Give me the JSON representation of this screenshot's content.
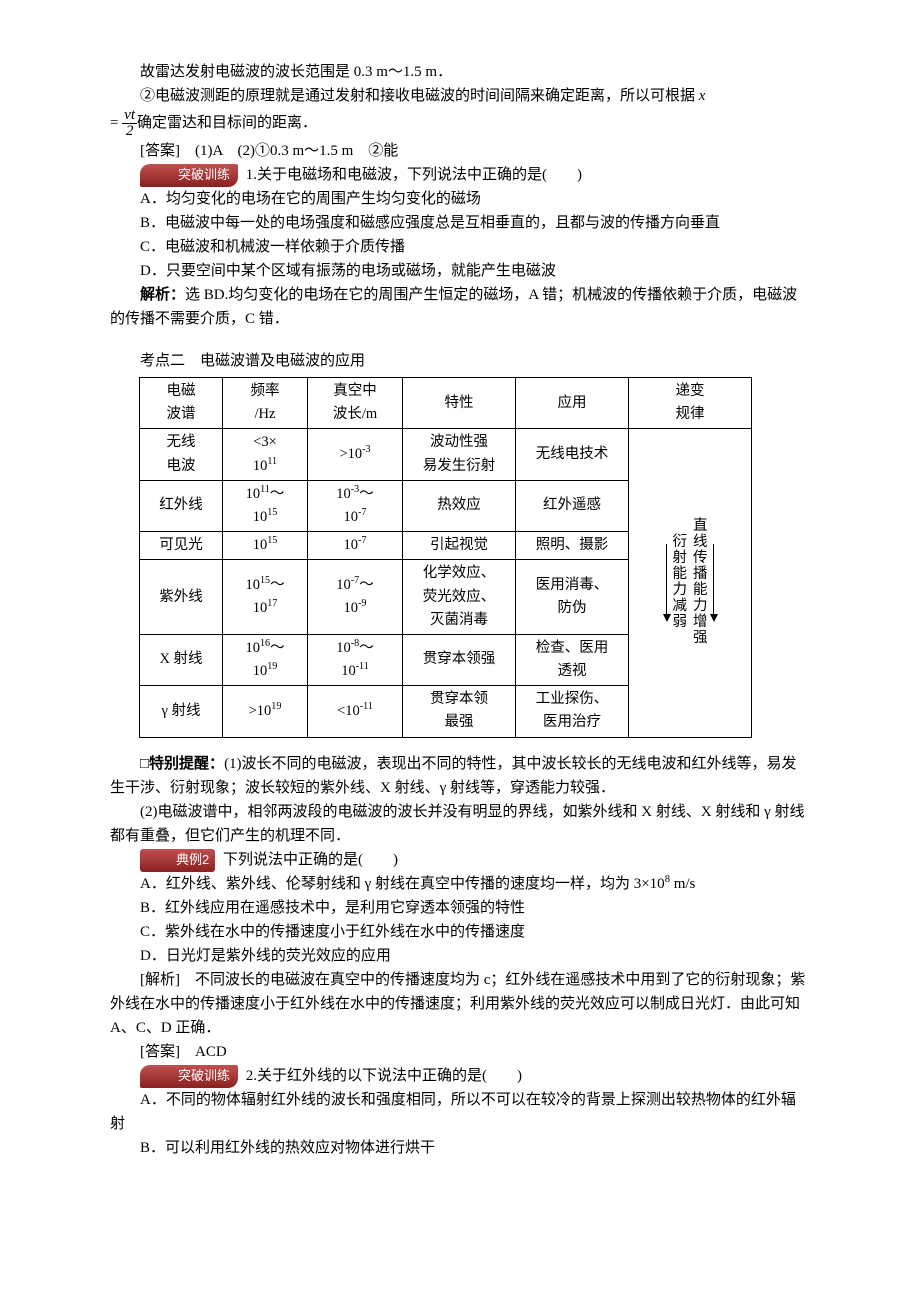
{
  "intro": {
    "line1": "故雷达发射电磁波的波长范围是 0.3 m～1.5 m．",
    "line2_prefix": "②电磁波测距的原理就是通过发射和接收电磁波的时间间隔来确定距离，所以可根据 ",
    "line2_var": "x",
    "line2_eq": " = ",
    "frac_num": "vt",
    "frac_den": "2",
    "line2_suffix": "确定雷达和目标间的距离．",
    "answer_label": "[答案]　(1)A　(2)①0.3 m～1.5 m　②能"
  },
  "badges": {
    "breakthrough": "突破训练",
    "example2": "典例2"
  },
  "q1": {
    "number": "1.",
    "stem": "关于电磁场和电磁波，下列说法中正确的是(　　)",
    "A": "A．均匀变化的电场在它的周围产生均匀变化的磁场",
    "B": "B．电磁波中每一处的电场强度和磁感应强度总是互相垂直的，且都与波的传播方向垂直",
    "C": "C．电磁波和机械波一样依赖于介质传播",
    "D": "D．只要空间中某个区域有振荡的电场或磁场，就能产生电磁波",
    "analysis_label": "解析：",
    "analysis_text": "选 BD.均匀变化的电场在它的周围产生恒定的磁场，A 错；机械波的传播依赖于介质，电磁波的传播不需要介质，C 错．"
  },
  "kd2_title": "考点二　电磁波谱及电磁波的应用",
  "table": {
    "headers": [
      "电磁\n波谱",
      "频率\n/Hz",
      "真空中\n波长/m",
      "特性",
      "应用",
      "递变\n规律"
    ],
    "rows": [
      {
        "name": "无线\n电波",
        "freq": "<3×\n10^{11}",
        "wl": ">10^{-3}",
        "prop": "波动性强\n易发生衍射",
        "app": "无线电技术"
      },
      {
        "name": "红外线",
        "freq": "10^{11}～\n10^{15}",
        "wl": "10^{-3}～\n10^{-7}",
        "prop": "热效应",
        "app": "红外遥感"
      },
      {
        "name": "可见光",
        "freq": "10^{15}",
        "wl": "10^{-7}",
        "prop": "引起视觉",
        "app": "照明、摄影"
      },
      {
        "name": "紫外线",
        "freq": "10^{15}～\n10^{17}",
        "wl": "10^{-7}～\n10^{-9}",
        "prop": "化学效应、\n荧光效应、\n灭菌消毒",
        "app": "医用消毒、\n防伪"
      },
      {
        "name": "X 射线",
        "freq": "10^{16}～\n10^{19}",
        "wl": "10^{-8}～\n10^{-11}",
        "prop": "贯穿本领强",
        "app": "检查、医用\n透视"
      },
      {
        "name": "γ 射线",
        "freq": ">10^{19}",
        "wl": "<10^{-11}",
        "prop": "贯穿本领\n最强",
        "app": "工业探伤、\n医用治疗"
      }
    ],
    "rule_left": "衍射能力减弱",
    "rule_right": "直线传播能力增强",
    "col_widths": [
      "70",
      "72",
      "82",
      "100",
      "100",
      "110"
    ]
  },
  "tip": {
    "label": "□特别提醒：",
    "p1": "(1)波长不同的电磁波，表现出不同的特性，其中波长较长的无线电波和红外线等，易发生干涉、衍射现象；波长较短的紫外线、X 射线、γ 射线等，穿透能力较强．",
    "p2": "(2)电磁波谱中，相邻两波段的电磁波的波长并没有明显的界线，如紫外线和 X 射线、X 射线和 γ 射线都有重叠，但它们产生的机理不同．"
  },
  "ex2": {
    "stem": "下列说法中正确的是(　　)",
    "A": "A．红外线、紫外线、伦琴射线和 γ 射线在真空中传播的速度均一样，均为 3×10^{8} m/s",
    "B": "B．红外线应用在遥感技术中，是利用它穿透本领强的特性",
    "C": "C．紫外线在水中的传播速度小于红外线在水中的传播速度",
    "D": "D．日光灯是紫外线的荧光效应的应用",
    "analysis_label": "[解析]　",
    "analysis_text": "不同波长的电磁波在真空中的传播速度均为 c；红外线在遥感技术中用到了它的衍射现象；紫外线在水中的传播速度小于红外线在水中的传播速度；利用紫外线的荧光效应可以制成日光灯．由此可知 A、C、D 正确．",
    "answer": "[答案]　ACD"
  },
  "q2": {
    "number": "2.",
    "stem": "关于红外线的以下说法中正确的是(　　)",
    "A": "A．不同的物体辐射红外线的波长和强度相同，所以不可以在较冷的背景上探测出较热物体的红外辐射",
    "B": "B．可以利用红外线的热效应对物体进行烘干"
  },
  "style": {
    "badge_bg": "#9c2b2b",
    "text_color": "#000000"
  }
}
